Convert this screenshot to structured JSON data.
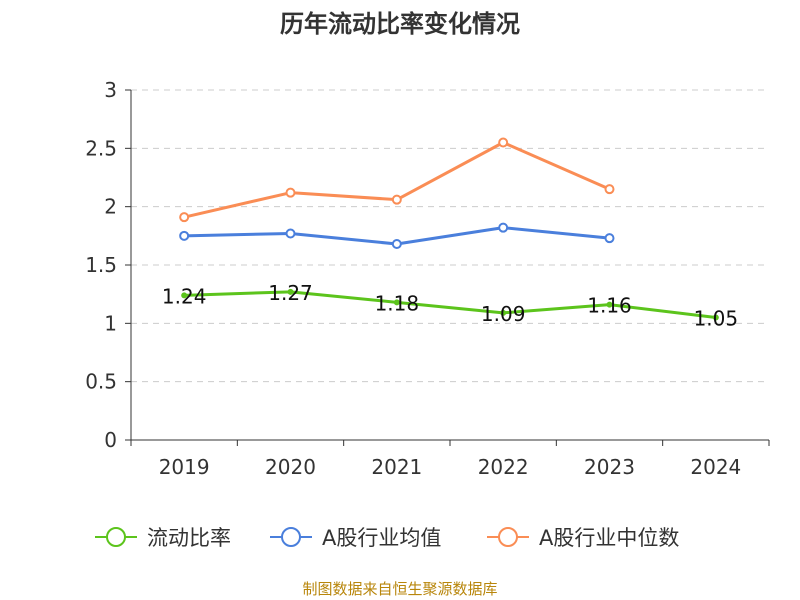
{
  "chart_data": {
    "type": "line",
    "title": "历年流动比率变化情况",
    "categories": [
      "2019",
      "2020",
      "2021",
      "2022",
      "2023",
      "2024"
    ],
    "ylim": [
      0,
      3
    ],
    "yticks": [
      "0",
      "0.5",
      "1",
      "1.5",
      "2",
      "2.5",
      "3"
    ],
    "grid": true,
    "legend_position": "bottom",
    "series": [
      {
        "name": "流动比率",
        "color": "#5cc41c",
        "values": [
          1.24,
          1.27,
          1.18,
          1.09,
          1.16,
          1.05
        ],
        "labels": [
          "1.24",
          "1.27",
          "1.18",
          "1.09",
          "1.16",
          "1.05"
        ]
      },
      {
        "name": "A股行业均值",
        "color": "#4a7fdc",
        "values": [
          1.75,
          1.77,
          1.68,
          1.82,
          1.73,
          null
        ]
      },
      {
        "name": "A股行业中位数",
        "color": "#fa8d55",
        "values": [
          1.91,
          2.12,
          2.06,
          2.55,
          2.15,
          null
        ]
      }
    ]
  },
  "source_note": "制图数据来自恒生聚源数据库"
}
